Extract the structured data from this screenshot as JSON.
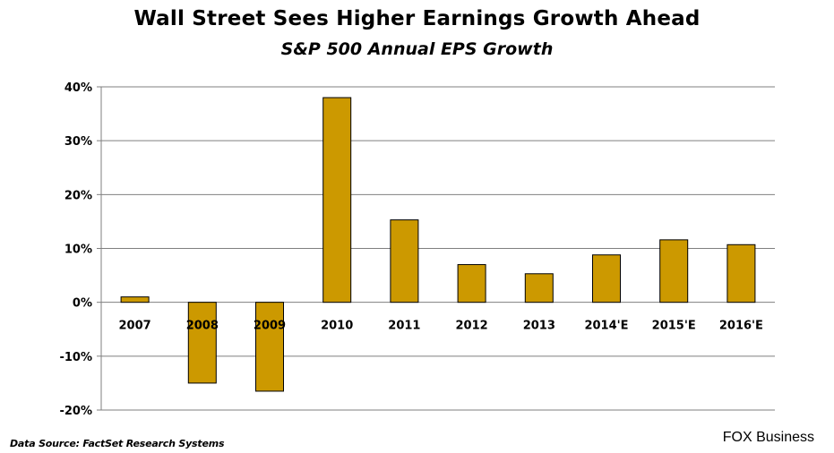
{
  "chart_data": {
    "type": "bar",
    "title": "Wall Street Sees Higher Earnings Growth Ahead",
    "subtitle": "S&P 500 Annual EPS Growth",
    "categories": [
      "2007",
      "2008",
      "2009",
      "2010",
      "2011",
      "2012",
      "2013",
      "2014'E",
      "2015'E",
      "2016'E"
    ],
    "values": [
      1.0,
      -15.0,
      -16.5,
      38.0,
      15.3,
      7.0,
      5.3,
      8.8,
      11.6,
      10.7
    ],
    "ylim": [
      -20,
      40
    ],
    "yticks": [
      -20,
      -10,
      0,
      10,
      20,
      30,
      40
    ],
    "ytick_labels": [
      "-20%",
      "-10%",
      "0%",
      "10%",
      "20%",
      "30%",
      "40%"
    ],
    "xlabel": "",
    "ylabel": "",
    "grid": true,
    "legend": "none",
    "bar_color": "#CC9900"
  },
  "source": "Data Source: FactSet Research Systems",
  "brand": "FOX Business"
}
